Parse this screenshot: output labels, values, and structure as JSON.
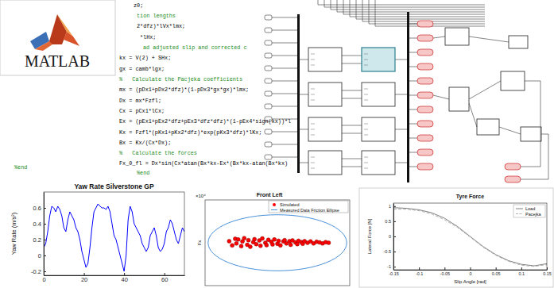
{
  "logo": {
    "text": "MATLAB"
  },
  "code": {
    "lines": [
      {
        "text": "z0;",
        "color": "#000000"
      },
      {
        "text": "tion lengths",
        "color": "#228b22"
      },
      {
        "text": "2*dfz)*lVx*lmx;",
        "color": "#000000"
      },
      {
        "text": "*lHx;",
        "color": "#000000"
      },
      {
        "text": "ad adjusted slip and corrected c",
        "color": "#228b22"
      },
      {
        "text": "kx = V(2) + SHx;",
        "color": "#000000"
      },
      {
        "text": "gx = camb*lgx;",
        "color": "#000000"
      },
      {
        "text": "%   Calculate the Pacjeka coefficients",
        "color": "#228b22"
      },
      {
        "text": "mx = (pDx1+pDx2*dfz)*(1-pDx3*gx*gx)*lmx;",
        "color": "#000000"
      },
      {
        "text": "Dx = mx*Fzfl;",
        "color": "#000000"
      },
      {
        "text": "Cx = pCx1*lCx;",
        "color": "#000000"
      },
      {
        "text": "Ex = (pEx1+pEx2*dfz+pEx3*dfz*dfz)*(1-pEx4*sign(kx))*l",
        "color": "#000000"
      },
      {
        "text": "Kx = Fzfl*(pKx1+pKx2*dfz)*exp(pKx3*dfz)*lKx;",
        "color": "#000000"
      },
      {
        "text": "Bx = Kx/(Cx*Dx);",
        "color": "#000000"
      },
      {
        "text": "%   Calculate the forces",
        "color": "#228b22"
      },
      {
        "text": "Fx_0_fl = Dx*sin(Cx*atan(Bx*kx-Ex*(Bx*kx-atan(Bx*kx)",
        "color": "#000000"
      },
      {
        "text": "%end",
        "color": "#228b22"
      },
      {
        "text": "%end",
        "color": "#228b22"
      }
    ]
  },
  "chart_data": [
    {
      "type": "line",
      "title": "Yaw Rate Silverstone GP",
      "y_label": "Yaw Rate (m/s²)",
      "x": [
        0,
        1,
        2,
        3,
        4,
        5,
        6,
        7,
        8,
        9,
        10,
        11,
        12,
        13,
        14,
        15,
        16,
        17,
        18,
        19,
        20,
        21,
        22,
        23,
        24,
        25,
        26,
        27,
        28,
        29,
        30,
        31,
        32,
        33,
        34,
        35,
        36,
        37,
        38,
        39,
        40,
        41,
        42,
        43,
        44,
        45,
        46,
        47,
        48,
        49,
        50,
        51,
        52,
        53,
        54,
        55,
        56,
        57,
        58,
        59,
        60,
        61,
        62,
        63,
        64,
        65,
        66,
        67,
        68,
        69,
        70
      ],
      "series": [
        {
          "color": "#0000ff",
          "values": [
            0.1,
            0.15,
            0.3,
            0.5,
            0.62,
            0.6,
            0.55,
            0.62,
            0.58,
            0.5,
            0.35,
            0.3,
            0.45,
            0.55,
            0.5,
            0.45,
            0.35,
            0.3,
            0.2,
            0.05,
            -0.05,
            -0.15,
            -0.1,
            0.1,
            0.35,
            0.55,
            0.6,
            0.65,
            0.62,
            0.6,
            0.6,
            0.58,
            0.62,
            0.55,
            0.4,
            0.25,
            0.2,
            0.1,
            0.0,
            -0.1,
            -0.2,
            0.0,
            0.45,
            0.62,
            0.55,
            0.4,
            0.35,
            0.3,
            0.25,
            0.15,
            0.1,
            0.05,
            0.1,
            0.25,
            0.3,
            0.35,
            0.25,
            0.1,
            0.05,
            0.08,
            0.15,
            0.3,
            0.35,
            0.45,
            0.4,
            0.3,
            0.2,
            0.15,
            0.25,
            0.35,
            0.3
          ]
        }
      ],
      "xlim": [
        0,
        70
      ],
      "ylim": [
        -0.25,
        0.8
      ],
      "xticks": [
        0,
        20,
        40,
        60
      ],
      "yticks": [
        -0.2,
        0,
        0.2,
        0.4,
        0.6
      ]
    },
    {
      "type": "scatter",
      "title": "Front Left",
      "y_label": "Fx",
      "annotations": [
        "×10⁴"
      ],
      "xlim": [
        -1.2,
        1.2
      ],
      "ylim": [
        -1.3,
        1.3
      ],
      "tick_labels": false,
      "legend": "upper right",
      "series": [
        {
          "name": "Simulated",
          "color": "#ff0000",
          "marker": "circle",
          "x": [
            -0.8,
            -0.75,
            -0.7,
            -0.68,
            -0.65,
            -0.6,
            -0.58,
            -0.55,
            -0.5,
            -0.48,
            -0.45,
            -0.4,
            -0.38,
            -0.35,
            -0.3,
            -0.28,
            -0.25,
            -0.2,
            -0.18,
            -0.15,
            -0.1,
            -0.08,
            -0.05,
            0,
            0.02,
            0.05,
            0.1,
            0.12,
            0.15,
            0.2,
            0.22,
            0.25,
            0.3,
            0.33,
            0.35,
            0.4,
            0.42,
            0.45,
            0.5,
            0.55,
            0.6,
            0.65,
            0.7,
            0.75,
            0.8,
            0.85
          ],
          "values": [
            0.05,
            -0.08,
            0.12,
            -0.02,
            0.1,
            -0.1,
            0.04,
            0.14,
            -0.06,
            0.08,
            -0.12,
            0.02,
            0.11,
            -0.04,
            0.07,
            -0.09,
            0.13,
            0.0,
            -0.07,
            0.09,
            0.03,
            -0.05,
            0.1,
            -0.03,
            0.06,
            -0.08,
            0.04,
            0.08,
            -0.02,
            0.05,
            -0.06,
            0.07,
            0.01,
            -0.04,
            0.06,
            0.02,
            -0.03,
            0.05,
            0.0,
            0.04,
            -0.02,
            0.03,
            0.01,
            -0.02,
            0.02,
            0.0
          ]
        },
        {
          "name": "Measured Data Friction Ellipse",
          "type": "ellipse",
          "color": "#4a90d9",
          "center": [
            0,
            0
          ],
          "radii": [
            1.15,
            0.85
          ]
        }
      ]
    },
    {
      "type": "line",
      "title": "Tyre Force",
      "x_label": "Slip Angle [rad]",
      "y_label": "Lateral Force [N]",
      "legend": "upper right",
      "x": [
        -0.15,
        -0.125,
        -0.1,
        -0.075,
        -0.05,
        -0.025,
        0,
        0.025,
        0.05,
        0.075,
        0.1,
        0.125,
        0.15
      ],
      "series": [
        {
          "name": "Load",
          "color": "#7f7f7f",
          "line_style": "solid",
          "values": [
            0.95,
            0.93,
            0.88,
            0.78,
            0.6,
            0.33,
            0.0,
            -0.33,
            -0.6,
            -0.8,
            -0.92,
            -0.97,
            -0.9
          ]
        },
        {
          "name": "Pacejka",
          "color": "#b0b0b0",
          "line_style": "dashed",
          "values": [
            0.9,
            0.9,
            0.85,
            0.74,
            0.55,
            0.3,
            -0.02,
            -0.35,
            -0.62,
            -0.82,
            -0.95,
            -0.99,
            -0.93
          ]
        }
      ],
      "xlim": [
        -0.15,
        0.15
      ],
      "ylim": [
        -1.1,
        1.1
      ],
      "xticks": [
        -0.15,
        -0.1,
        -0.05,
        0,
        0.05,
        0.1,
        0.15
      ],
      "yticks": [
        -1,
        -0.5,
        0,
        0.5,
        1
      ]
    }
  ]
}
